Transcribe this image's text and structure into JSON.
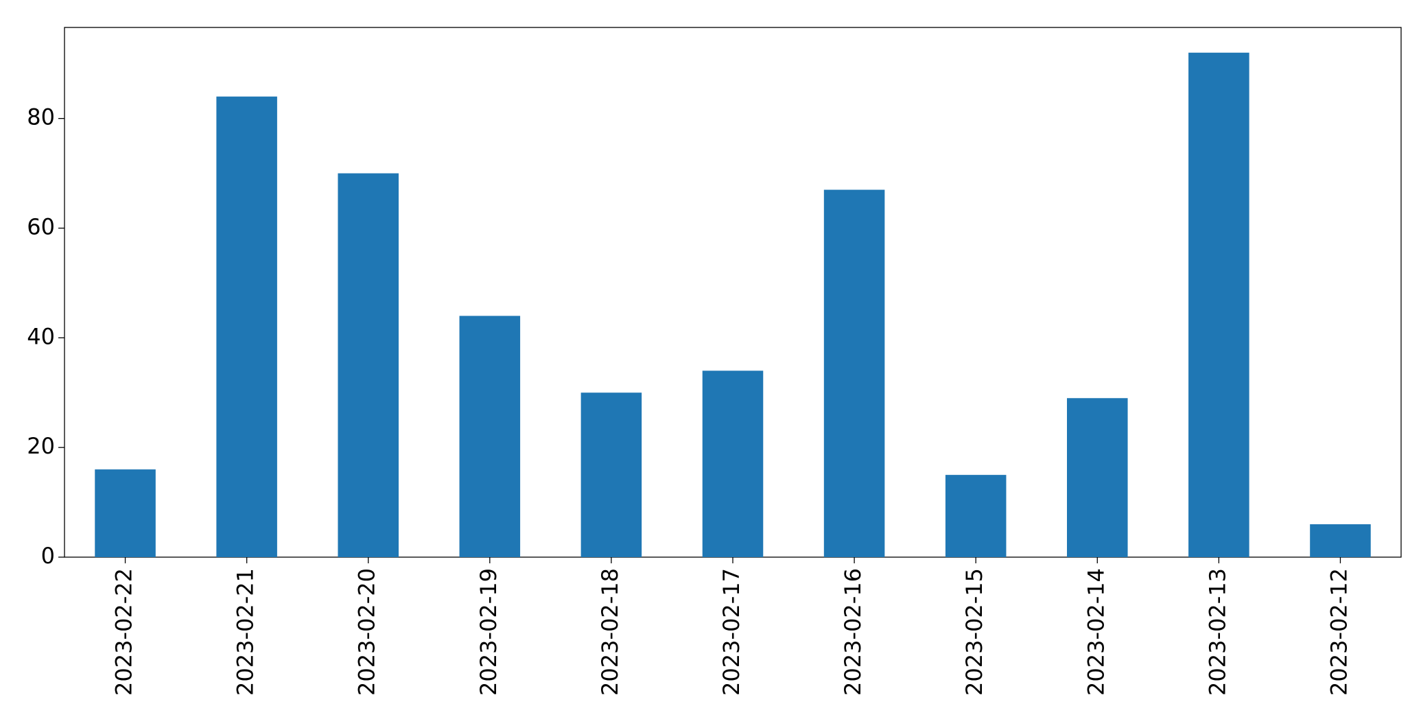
{
  "chart_data": {
    "type": "bar",
    "categories": [
      "2023-02-22",
      "2023-02-21",
      "2023-02-20",
      "2023-02-19",
      "2023-02-18",
      "2023-02-17",
      "2023-02-16",
      "2023-02-15",
      "2023-02-14",
      "2023-02-13",
      "2023-02-12"
    ],
    "values": [
      16,
      84,
      70,
      44,
      30,
      34,
      67,
      15,
      29,
      92,
      6
    ],
    "color": "#1f77b4",
    "ylim": [
      0,
      96.6
    ],
    "yticks": [
      0,
      20,
      40,
      60,
      80
    ]
  }
}
